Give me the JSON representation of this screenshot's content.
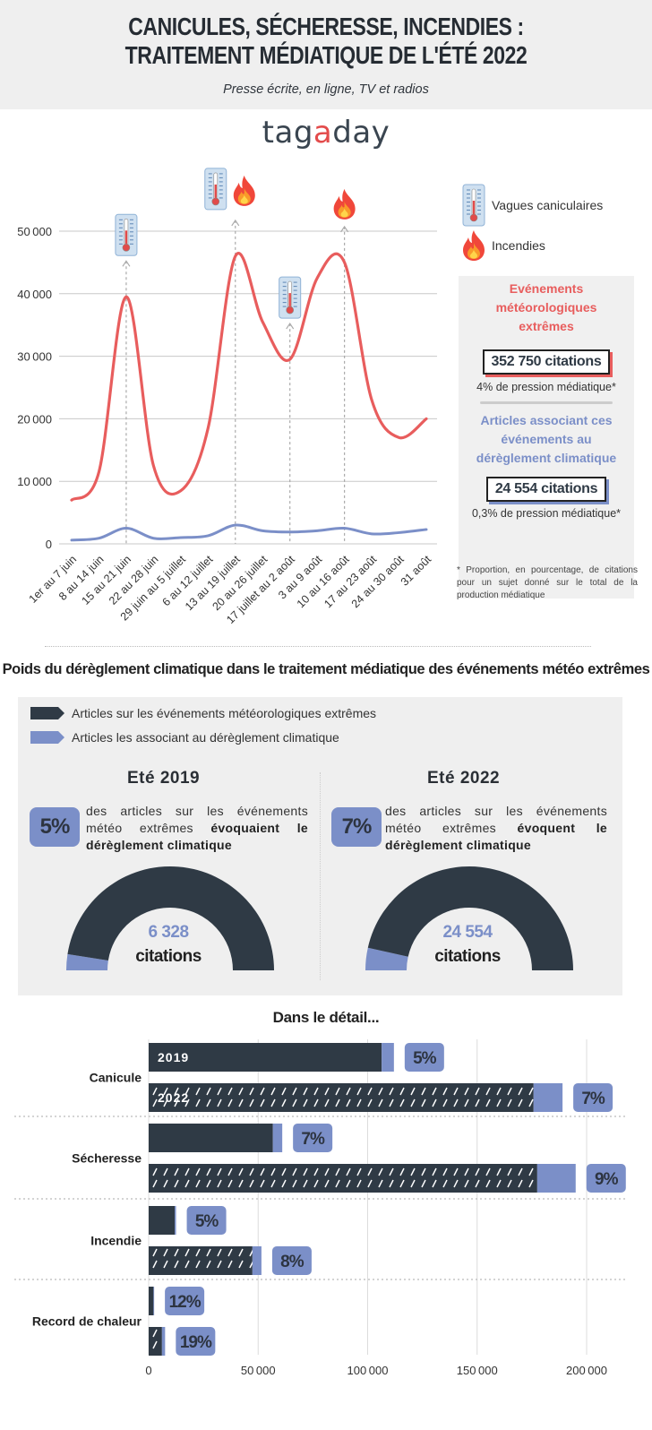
{
  "header": {
    "title_line1": "CANICULES, SÉCHERESSE, INCENDIES :",
    "title_line2": "TRAITEMENT MÉDIATIQUE DE L'ÉTÉ 2022",
    "subtitle": "Presse écrite, en ligne, TV et radios"
  },
  "logo": {
    "part1": "tag",
    "part2": "a",
    "part3": "day"
  },
  "legend": {
    "heatwaves": "Vagues caniculaires",
    "fires": "Incendies"
  },
  "stats": {
    "extreme_title": "Evénements météorologiques extrêmes",
    "extreme_citations": "352 750 citations",
    "extreme_pressure": "4% de pression médiatique*",
    "climate_title": "Articles associant ces événements au dérèglement climatique",
    "climate_citations": "24 554 citations",
    "climate_pressure": "0,3% de pression médiatique*",
    "footnote": "* Proportion, en pourcentage, de citations pour un sujet donné sur le total de la production médiatique"
  },
  "colors": {
    "red": "#e85d5d",
    "blue": "#7b8fc8",
    "dark": "#2f3a45",
    "grey_bg": "#efefef"
  },
  "chart_data": [
    {
      "type": "line",
      "title": "",
      "x": [
        "1er au 7 juin",
        "8 au 14 juin",
        "15 au 21 juin",
        "22 au 28 juin",
        "29 juin au 5 juillet",
        "6 au 12 juillet",
        "13 au 19 juillet",
        "20 au 26 juillet",
        "17 juillet au 2 août",
        "3 au 9 août",
        "10 au 16 août",
        "17 au 23 août",
        "24 au 30 août",
        "31 août"
      ],
      "series": [
        {
          "name": "Evénements météorologiques extrêmes",
          "values": [
            7000,
            11500,
            39500,
            12500,
            8500,
            18500,
            46000,
            35500,
            29500,
            42500,
            45000,
            23000,
            17000,
            20000
          ]
        },
        {
          "name": "Articles associant ces événements au dérèglement climatique",
          "values": [
            600,
            900,
            2500,
            900,
            1000,
            1300,
            3000,
            2100,
            1900,
            2100,
            2500,
            1600,
            1800,
            2300
          ]
        }
      ],
      "ylim": [
        0,
        50000
      ],
      "yticks": [
        "0",
        "10000",
        "20000",
        "30000",
        "40000",
        "50000"
      ],
      "annotations": [
        {
          "x": "15 au 21 juin",
          "icon": "thermometer-icon"
        },
        {
          "x": "13 au 19 juillet",
          "icon": "thermometer-icon"
        },
        {
          "x": "13 au 19 juillet",
          "icon": "fire-icon"
        },
        {
          "x": "17 juillet au 2 août",
          "icon": "thermometer-icon"
        },
        {
          "x": "10 au 16 août",
          "icon": "fire-icon"
        }
      ],
      "grid": true
    },
    {
      "type": "pie",
      "title": "Eté 2019",
      "slices": [
        {
          "name": "Articles sur les événements météorologiques extrêmes",
          "value": 95
        },
        {
          "name": "Articles les associant au dérèglement climatique",
          "value": 5
        }
      ],
      "pct": "5%",
      "citations": "6 328",
      "citations_label": "citations"
    },
    {
      "type": "pie",
      "title": "Eté 2022",
      "slices": [
        {
          "name": "Articles sur les événements météorologiques extrêmes",
          "value": 93
        },
        {
          "name": "Articles les associant au dérèglement climatique",
          "value": 7
        }
      ],
      "pct": "7%",
      "citations": "24 554",
      "citations_label": "citations"
    },
    {
      "type": "bar",
      "title": "Dans le détail...",
      "categories": [
        "Canicule",
        "Sécheresse",
        "Incendie",
        "Record de chaleur"
      ],
      "series": [
        {
          "name": "2019",
          "totals": [
            112000,
            61000,
            12500,
            2500
          ],
          "pct_labels": [
            "5%",
            "7%",
            "5%",
            "12%"
          ]
        },
        {
          "name": "2022",
          "totals": [
            189000,
            195000,
            51500,
            7500
          ],
          "pct_labels": [
            "7%",
            "9%",
            "8%",
            "19%"
          ]
        }
      ],
      "climate_share": [
        [
          0.05,
          0.07
        ],
        [
          0.07,
          0.09
        ],
        [
          0.05,
          0.08
        ],
        [
          0.12,
          0.19
        ]
      ],
      "xlim": [
        0,
        200000
      ],
      "xticks": [
        "0",
        "50000",
        "100000",
        "150000",
        "200000"
      ]
    }
  ],
  "section2": {
    "title": "Poids du dérèglement climatique dans le traitement médiatique des événements météo extrêmes",
    "legend_dark": "Articles sur les événements météorologiques extrêmes",
    "legend_blue": "Articles les associant au dérèglement climatique",
    "y2019": {
      "year": "Eté 2019",
      "pct": "5%",
      "text_plain": "des articles sur les événements météo extrêmes ",
      "text_bold": "évoquaient le dérèglement climatique",
      "citations": "6 328",
      "citations_label": "citations"
    },
    "y2022": {
      "year": "Eté 2022",
      "pct": "7%",
      "text_plain": "des articles sur les événements météo extrêmes ",
      "text_bold": "évoquent le dérèglement climatique",
      "citations": "24 554",
      "citations_label": "citations"
    }
  }
}
